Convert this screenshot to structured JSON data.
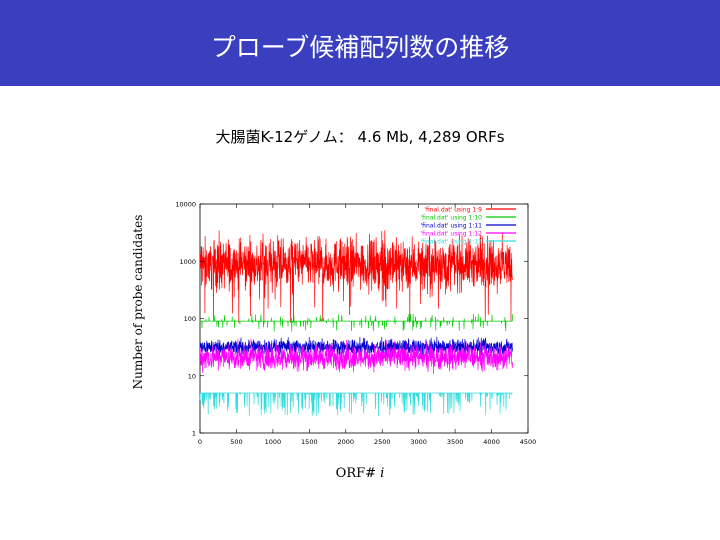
{
  "header": {
    "title": "プローブ候補配列数の推移",
    "bg_color": "#3a3fc0"
  },
  "subtitle": "大腸菌K-12ゲノム： 4.6 Mb, 4,289 ORFs",
  "chart_data": {
    "type": "line",
    "y_scale": "log",
    "xlabel_prefix": "ORF#",
    "xlabel_var": "i",
    "ylabel": "Number of probe candidates",
    "xlim": [
      0,
      4500
    ],
    "ylim": [
      1,
      10000
    ],
    "x_ticks": [
      0,
      500,
      1000,
      1500,
      2000,
      2500,
      3000,
      3500,
      4000,
      4500
    ],
    "y_ticks": [
      1,
      10,
      100,
      1000,
      10000
    ],
    "x_max_orf": 4289,
    "grid": false,
    "legend_position": "top-right",
    "series": [
      {
        "name": "'final.dat' using 1:9",
        "color": "#ff0000",
        "typical": 800,
        "low": 200,
        "high": 4000
      },
      {
        "name": "'final.dat' using 1:10",
        "color": "#00cc00",
        "typical": 90,
        "low": 60,
        "high": 120
      },
      {
        "name": "'final.dat' using 1:11",
        "color": "#0000cc",
        "typical": 30,
        "low": 20,
        "high": 50
      },
      {
        "name": "'final.dat' using 1:12",
        "color": "#ff00ff",
        "typical": 22,
        "low": 10,
        "high": 45
      },
      {
        "name": "'final.dat' using 1:13",
        "color": "#33dddd",
        "typical": 5,
        "low": 2,
        "high": 5
      }
    ]
  }
}
